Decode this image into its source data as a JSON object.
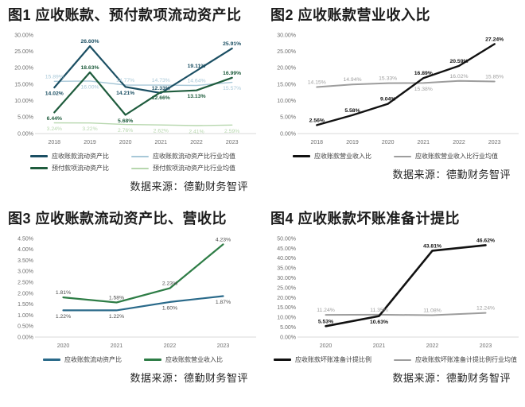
{
  "page": {
    "background": "#ffffff"
  },
  "chart_data": [
    {
      "type": "line",
      "title": "图1 应收账款、预付款项流动资产比",
      "source": "数据来源：德勤财务智评",
      "categories": [
        "2018",
        "2019",
        "2020",
        "2021",
        "2022",
        "2023"
      ],
      "ylim": [
        0,
        30
      ],
      "yticks": [
        "0.00%",
        "5.00%",
        "10.00%",
        "15.00%",
        "20.00%",
        "25.00%",
        "30.00%"
      ],
      "grid": false,
      "legend_position": "bottom",
      "legend_columns": 2,
      "series": [
        {
          "name": "应收账款流动资产比行业均值",
          "legend_index": 1,
          "color": "#a8c8d8",
          "width": 1.4,
          "bold_labels": false,
          "values": [
            15.89,
            16.0,
            14.77,
            14.73,
            14.64,
            15.57
          ],
          "labels": [
            "15.89%",
            "16.00%",
            "14.77%",
            "14.73%",
            "14.64%",
            "15.57%"
          ],
          "label_sides": [
            "above",
            "below",
            "above",
            "above",
            "above",
            "below"
          ]
        },
        {
          "name": "预付款项流动资产比行业均值",
          "legend_index": 3,
          "color": "#b7d7ae",
          "width": 1.4,
          "bold_labels": false,
          "values": [
            3.24,
            3.22,
            2.76,
            2.62,
            2.41,
            2.59
          ],
          "labels": [
            "3.24%",
            "3.22%",
            "2.76%",
            "2.62%",
            "2.41%",
            "2.59%"
          ],
          "label_sides": [
            "below",
            "below",
            "below",
            "below",
            "below",
            "below"
          ]
        },
        {
          "name": "应收账款流动资产比",
          "legend_index": 0,
          "color": "#1b4f63",
          "width": 2.2,
          "bold_labels": true,
          "values": [
            14.02,
            26.6,
            14.21,
            12.33,
            19.11,
            25.91
          ],
          "labels": [
            "14.02%",
            "26.60%",
            "14.21%",
            "12.33%",
            "19.11%",
            "25.91%"
          ],
          "label_sides": [
            "below",
            "above",
            "below",
            "above",
            "above",
            "above"
          ]
        },
        {
          "name": "预付款项流动资产比",
          "legend_index": 2,
          "color": "#1f5c3d",
          "width": 2.2,
          "bold_labels": true,
          "values": [
            6.44,
            18.63,
            5.68,
            12.66,
            13.13,
            16.99
          ],
          "labels": [
            "6.44%",
            "18.63%",
            "5.68%",
            "12.66%",
            "13.13%",
            "16.99%"
          ],
          "label_sides": [
            "below",
            "above",
            "below",
            "below",
            "below",
            "above"
          ]
        }
      ]
    },
    {
      "type": "line",
      "title": "图2 应收账款营业收入比",
      "source": "数据来源：德勤财务智评",
      "categories": [
        "2018",
        "2019",
        "2020",
        "2021",
        "2022",
        "2023"
      ],
      "ylim": [
        0,
        30
      ],
      "yticks": [
        "0.00%",
        "5.00%",
        "10.00%",
        "15.00%",
        "20.00%",
        "25.00%",
        "30.00%"
      ],
      "grid": false,
      "legend_position": "bottom",
      "legend_columns": 2,
      "series": [
        {
          "name": "应收账款营业收入比行业均值",
          "legend_index": 1,
          "color": "#9d9d9d",
          "width": 2,
          "bold_labels": false,
          "values": [
            14.15,
            14.94,
            15.33,
            15.38,
            16.02,
            15.85
          ],
          "labels": [
            "14.15%",
            "14.94%",
            "15.33%",
            "15.38%",
            "16.02%",
            "15.85%"
          ],
          "label_sides": [
            "above",
            "above",
            "above",
            "below",
            "above",
            "above"
          ]
        },
        {
          "name": "应收账款营业收入比",
          "legend_index": 0,
          "color": "#111111",
          "width": 2.4,
          "bold_labels": true,
          "values": [
            2.56,
            5.58,
            9.04,
            16.89,
            20.59,
            27.24
          ],
          "labels": [
            "2.56%",
            "5.58%",
            "9.04%",
            "16.89%",
            "20.59%",
            "27.24%"
          ],
          "label_sides": [
            "above",
            "above",
            "above",
            "above",
            "above",
            "above"
          ]
        }
      ]
    },
    {
      "type": "line",
      "title": "图3 应收账款流动资产比、营收比",
      "source": "数据来源：德勤财务智评",
      "categories": [
        "2020",
        "2021",
        "2022",
        "2023"
      ],
      "ylim": [
        0,
        4.5
      ],
      "yticks": [
        "0.00%",
        "0.50%",
        "1.00%",
        "1.50%",
        "2.00%",
        "2.50%",
        "3.00%",
        "3.50%",
        "4.00%",
        "4.50%"
      ],
      "grid": false,
      "legend_position": "bottom",
      "legend_columns": 2,
      "series": [
        {
          "name": "应收账款流动资产比",
          "legend_index": 0,
          "color": "#2a6a8a",
          "width": 2.2,
          "bold_labels": false,
          "label_color": "#4a4a4a",
          "values": [
            1.22,
            1.22,
            1.6,
            1.87
          ],
          "labels": [
            "1.22%",
            "1.22%",
            "1.60%",
            "1.87%"
          ],
          "label_sides": [
            "below",
            "below",
            "below",
            "below"
          ]
        },
        {
          "name": "应收账款营业收入比",
          "legend_index": 1,
          "color": "#2e7d46",
          "width": 2.2,
          "bold_labels": false,
          "label_color": "#4a4a4a",
          "values": [
            1.81,
            1.58,
            2.23,
            4.23
          ],
          "labels": [
            "1.81%",
            "1.58%",
            "2.23%",
            "4.23%"
          ],
          "label_sides": [
            "above",
            "above",
            "above",
            "above"
          ]
        }
      ]
    },
    {
      "type": "line",
      "title": "图4 应收账款坏账准备计提比",
      "source": "数据来源：德勤财务智评",
      "categories": [
        "2020",
        "2021",
        "2022",
        "2023"
      ],
      "ylim": [
        0,
        50
      ],
      "yticks": [
        "0.00%",
        "5.00%",
        "10.00%",
        "15.00%",
        "20.00%",
        "25.00%",
        "30.00%",
        "35.00%",
        "40.00%",
        "45.00%",
        "50.00%"
      ],
      "grid": false,
      "legend_position": "bottom",
      "legend_columns": 2,
      "series": [
        {
          "name": "应收账款坏账准备计提比例行业均值",
          "legend_index": 1,
          "color": "#9d9d9d",
          "width": 2,
          "bold_labels": false,
          "values": [
            11.24,
            11.35,
            11.08,
            12.24
          ],
          "labels": [
            "11.24%",
            "11.35%",
            "11.08%",
            "12.24%"
          ],
          "label_sides": [
            "above",
            "above",
            "above",
            "above"
          ]
        },
        {
          "name": "应收账款坏账准备计提比例",
          "legend_index": 0,
          "color": "#111111",
          "width": 2.6,
          "bold_labels": true,
          "values": [
            5.53,
            10.63,
            43.81,
            46.62
          ],
          "labels": [
            "5.53%",
            "10.63%",
            "43.81%",
            "46.62%"
          ],
          "label_sides": [
            "above",
            "below",
            "above",
            "above"
          ]
        }
      ]
    }
  ]
}
